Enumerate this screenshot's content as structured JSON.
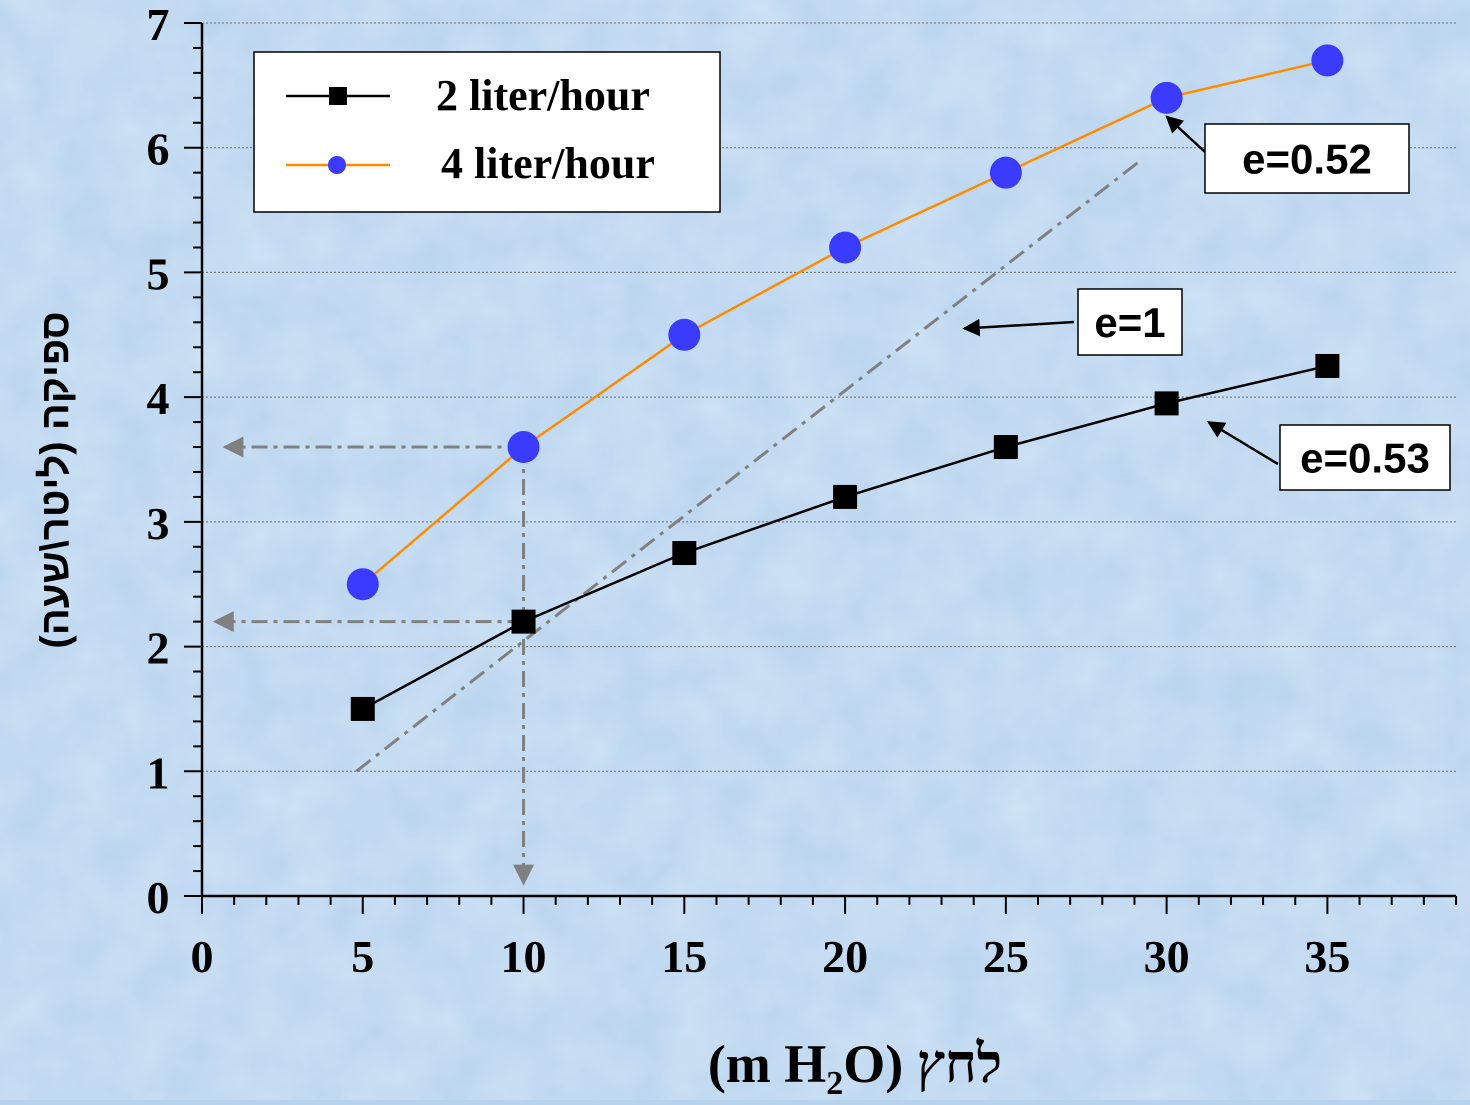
{
  "chart_data": {
    "type": "line",
    "xlabel": "(m H₂O) לחץ",
    "xlabel_parts": {
      "open": "(m H",
      "sub": "2",
      "close": "O) לחץ"
    },
    "ylabel": "ספיקה (ליטר\\שעה)",
    "xlim": [
      0,
      39
    ],
    "ylim": [
      0,
      7
    ],
    "x_ticks": [
      0,
      5,
      10,
      15,
      20,
      25,
      30,
      35
    ],
    "y_ticks": [
      0,
      1,
      2,
      3,
      4,
      5,
      6,
      7
    ],
    "grid": "horizontal dotted",
    "legend_position": "top-left",
    "series": [
      {
        "name": "2 liter/hour",
        "color": "#000000",
        "marker": "square",
        "x": [
          5,
          10,
          15,
          20,
          25,
          30,
          35
        ],
        "y": [
          1.5,
          2.2,
          2.75,
          3.2,
          3.6,
          3.95,
          4.25
        ]
      },
      {
        "name": "4 liter/hour",
        "color": "#ff8c00",
        "marker_color": "#3b3bff",
        "marker": "circle",
        "x": [
          5,
          10,
          15,
          20,
          25,
          30,
          35
        ],
        "y": [
          2.5,
          3.6,
          4.5,
          5.2,
          5.8,
          6.4,
          6.7
        ]
      }
    ],
    "reference_line": {
      "from": [
        4.8,
        1.0
      ],
      "to": [
        29.2,
        5.9
      ],
      "color": "#808080",
      "style": "dash-dot"
    },
    "guide_lines": [
      {
        "from": [
          10,
          3.6
        ],
        "to": [
          10,
          0.1
        ],
        "style": "dash-dot",
        "arrow": true
      },
      {
        "from": [
          10,
          3.6
        ],
        "to": [
          0.7,
          3.6
        ],
        "style": "dash-dot",
        "arrow": true
      },
      {
        "from": [
          10,
          2.2
        ],
        "to": [
          0.4,
          2.2
        ],
        "style": "dash-dot",
        "arrow": true
      }
    ],
    "annotations": [
      {
        "text": "e=0.52",
        "points_to": [
          30,
          6.25
        ]
      },
      {
        "text": "e=1",
        "points_to": [
          23.7,
          4.55
        ]
      },
      {
        "text": "e=0.53",
        "points_to": [
          31.3,
          3.8
        ]
      }
    ]
  }
}
